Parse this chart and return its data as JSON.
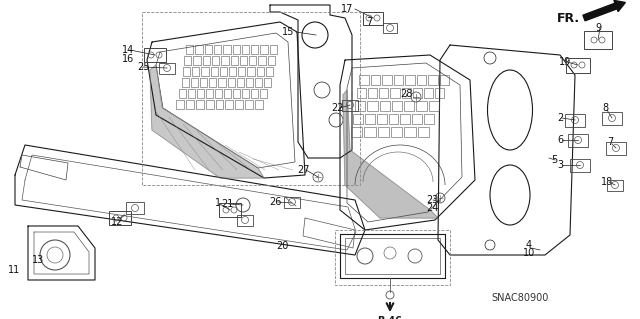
{
  "bg_color": "#ffffff",
  "fig_width": 6.4,
  "fig_height": 3.19,
  "diagram_code": "SNAC80900",
  "line_color": "#1a1a1a",
  "label_color": "#111111",
  "label_fs": 7.0
}
